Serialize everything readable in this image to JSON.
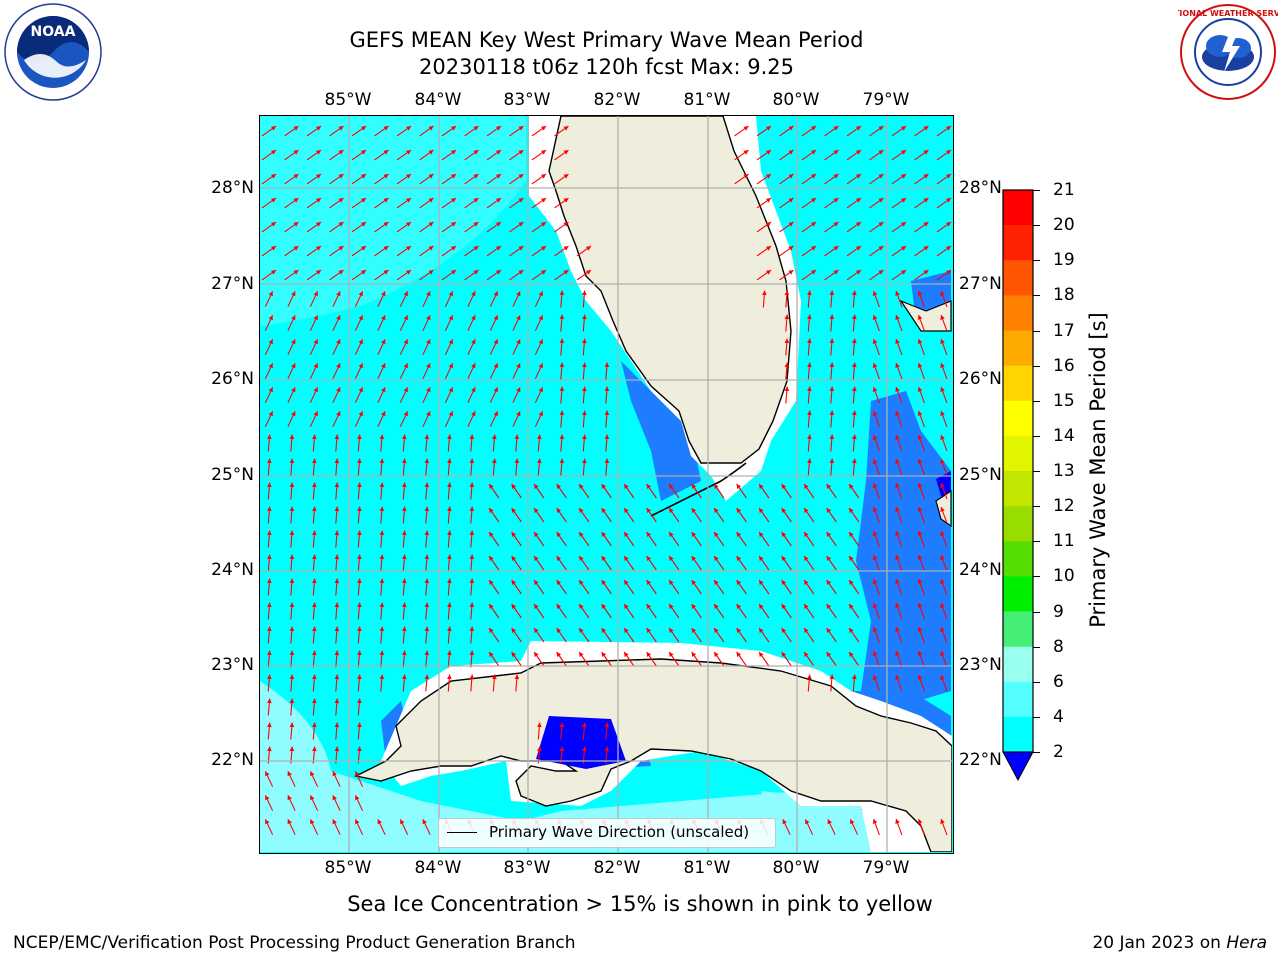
{
  "title_line1": "GEFS MEAN Key West Primary Wave Mean Period",
  "title_line2": "20230118 t06z 120h fcst   Max: 9.25",
  "longitudes": [
    "85°W",
    "84°W",
    "83°W",
    "82°W",
    "81°W",
    "80°W",
    "79°W"
  ],
  "latitudes": [
    "28°N",
    "27°N",
    "26°N",
    "25°N",
    "24°N",
    "23°N",
    "22°N"
  ],
  "legend_label": "Primary Wave Direction (unscaled)",
  "colorbar": {
    "label": "Primary Wave Mean Period [s]",
    "ticks": [
      "21",
      "20",
      "19",
      "18",
      "17",
      "16",
      "15",
      "14",
      "13",
      "12",
      "11",
      "10",
      "9",
      "8",
      "6",
      "4",
      "2"
    ],
    "colors": [
      "#ff0000",
      "#ff2200",
      "#ff5500",
      "#ff7f00",
      "#ffaa00",
      "#ffd400",
      "#ffff00",
      "#e1f500",
      "#c3e600",
      "#99dd00",
      "#55dd00",
      "#00ee00",
      "#44ee77",
      "#99ffee",
      "#55ffff",
      "#00ffff",
      "#0077ff"
    ],
    "extend_min_color": "#0000ff"
  },
  "caption": "Sea Ice Concentration > 15% is shown in pink to yellow",
  "footer_left": "NCEP/EMC/Verification Post Processing Product Generation Branch",
  "footer_right_prefix": "20 Jan 2023 on ",
  "footer_right_host": "Hera",
  "logos": {
    "noaa": {
      "text": "NOAA",
      "ring_text": "NATIONAL OCEANIC AND ATMOSPHERIC ADMINISTRATION · U.S. DEPARTMENT OF COMMERCE"
    },
    "nws": {
      "ring_text": "NATIONAL WEATHER SERVICE"
    }
  },
  "colors": {
    "land": "#efeddc",
    "water_cyan": "#00ffff",
    "water_light": "#8ffcff",
    "blue_mid": "#1e7cff",
    "blue_dark": "#0000ff",
    "arrow": "#ff0000",
    "grid": "#b0b0b0"
  }
}
